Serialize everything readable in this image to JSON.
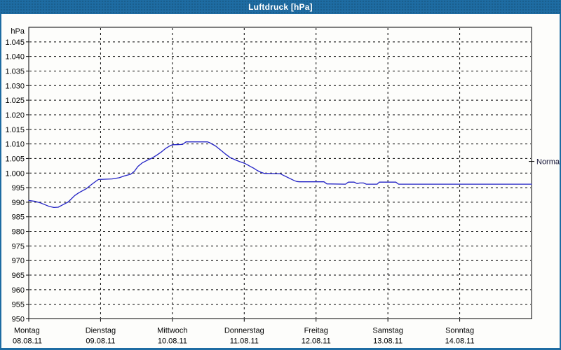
{
  "window": {
    "title": "Luftdruck [hPa]",
    "titlebar_color": "#1e6ca3",
    "border_color": "#1e6ca3",
    "background_color": "#fdfdfb"
  },
  "chart_data": {
    "type": "line",
    "title": "Luftdruck [hPa]",
    "ylabel": "hPa",
    "grid": "dashed",
    "grid_color": "#000000",
    "frame_color": "#000000",
    "y_axis": {
      "unit_label": "hPa",
      "min": 950,
      "max": 1050,
      "tick_step": 5,
      "ticks": [
        {
          "value": 1045,
          "label": "1.045"
        },
        {
          "value": 1040,
          "label": "1.040"
        },
        {
          "value": 1035,
          "label": "1.035"
        },
        {
          "value": 1030,
          "label": "1.030"
        },
        {
          "value": 1025,
          "label": "1.025"
        },
        {
          "value": 1020,
          "label": "1.020"
        },
        {
          "value": 1015,
          "label": "1.015"
        },
        {
          "value": 1010,
          "label": "1.010"
        },
        {
          "value": 1005,
          "label": "1.005"
        },
        {
          "value": 1000,
          "label": "1.000"
        },
        {
          "value": 995,
          "label": "995"
        },
        {
          "value": 990,
          "label": "990"
        },
        {
          "value": 985,
          "label": "985"
        },
        {
          "value": 980,
          "label": "980"
        },
        {
          "value": 975,
          "label": "975"
        },
        {
          "value": 970,
          "label": "970"
        },
        {
          "value": 965,
          "label": "965"
        },
        {
          "value": 960,
          "label": "960"
        },
        {
          "value": 955,
          "label": "955"
        },
        {
          "value": 950,
          "label": "950"
        }
      ]
    },
    "x_axis": {
      "days": [
        {
          "name": "Montag",
          "date": "08.08.11"
        },
        {
          "name": "Dienstag",
          "date": "09.08.11"
        },
        {
          "name": "Mittwoch",
          "date": "10.08.11"
        },
        {
          "name": "Donnerstag",
          "date": "11.08.11"
        },
        {
          "name": "Freitag",
          "date": "12.08.11"
        },
        {
          "name": "Samstag",
          "date": "13.08.11"
        },
        {
          "name": "Sonntag",
          "date": "14.08.11"
        }
      ]
    },
    "normal_marker": {
      "label": "Normal",
      "value": 1004,
      "text_color": "#141436"
    },
    "series": [
      {
        "name": "Luftdruck",
        "color": "#2121c4",
        "points": [
          [
            0.0,
            990.6
          ],
          [
            0.09,
            990.3
          ],
          [
            0.16,
            989.8
          ],
          [
            0.22,
            989.2
          ],
          [
            0.28,
            988.6
          ],
          [
            0.35,
            988.2
          ],
          [
            0.41,
            988.3
          ],
          [
            0.48,
            989.2
          ],
          [
            0.55,
            990.1
          ],
          [
            0.64,
            992.3
          ],
          [
            0.7,
            993.3
          ],
          [
            0.8,
            994.6
          ],
          [
            0.87,
            996.0
          ],
          [
            0.94,
            997.3
          ],
          [
            0.97,
            997.8
          ],
          [
            1.16,
            998.0
          ],
          [
            1.26,
            998.4
          ],
          [
            1.33,
            999.0
          ],
          [
            1.42,
            999.6
          ],
          [
            1.47,
            1000.6
          ],
          [
            1.52,
            1002.3
          ],
          [
            1.58,
            1003.5
          ],
          [
            1.65,
            1004.4
          ],
          [
            1.72,
            1005.2
          ],
          [
            1.78,
            1006.1
          ],
          [
            1.85,
            1007.3
          ],
          [
            1.91,
            1008.5
          ],
          [
            1.97,
            1009.4
          ],
          [
            2.0,
            1009.7
          ],
          [
            2.14,
            1009.8
          ],
          [
            2.19,
            1010.7
          ],
          [
            2.49,
            1010.7
          ],
          [
            2.53,
            1010.3
          ],
          [
            2.6,
            1009.3
          ],
          [
            2.67,
            1007.9
          ],
          [
            2.74,
            1006.5
          ],
          [
            2.8,
            1005.4
          ],
          [
            2.87,
            1004.6
          ],
          [
            2.94,
            1003.9
          ],
          [
            3.0,
            1003.4
          ],
          [
            3.04,
            1002.9
          ],
          [
            3.09,
            1002.2
          ],
          [
            3.13,
            1001.7
          ],
          [
            3.18,
            1000.9
          ],
          [
            3.23,
            1000.3
          ],
          [
            3.28,
            999.9
          ],
          [
            3.5,
            999.8
          ],
          [
            3.54,
            999.3
          ],
          [
            3.59,
            998.7
          ],
          [
            3.64,
            998.1
          ],
          [
            3.69,
            997.5
          ],
          [
            3.73,
            997.1
          ],
          [
            3.77,
            997.0
          ],
          [
            4.11,
            997.0
          ],
          [
            4.15,
            996.3
          ],
          [
            4.41,
            996.2
          ],
          [
            4.45,
            996.9
          ],
          [
            4.53,
            996.9
          ],
          [
            4.57,
            996.4
          ],
          [
            4.61,
            996.6
          ],
          [
            4.66,
            996.6
          ],
          [
            4.7,
            996.2
          ],
          [
            4.85,
            996.2
          ],
          [
            4.88,
            996.9
          ],
          [
            5.11,
            996.9
          ],
          [
            5.15,
            996.2
          ],
          [
            7.0,
            996.2
          ]
        ]
      }
    ]
  }
}
